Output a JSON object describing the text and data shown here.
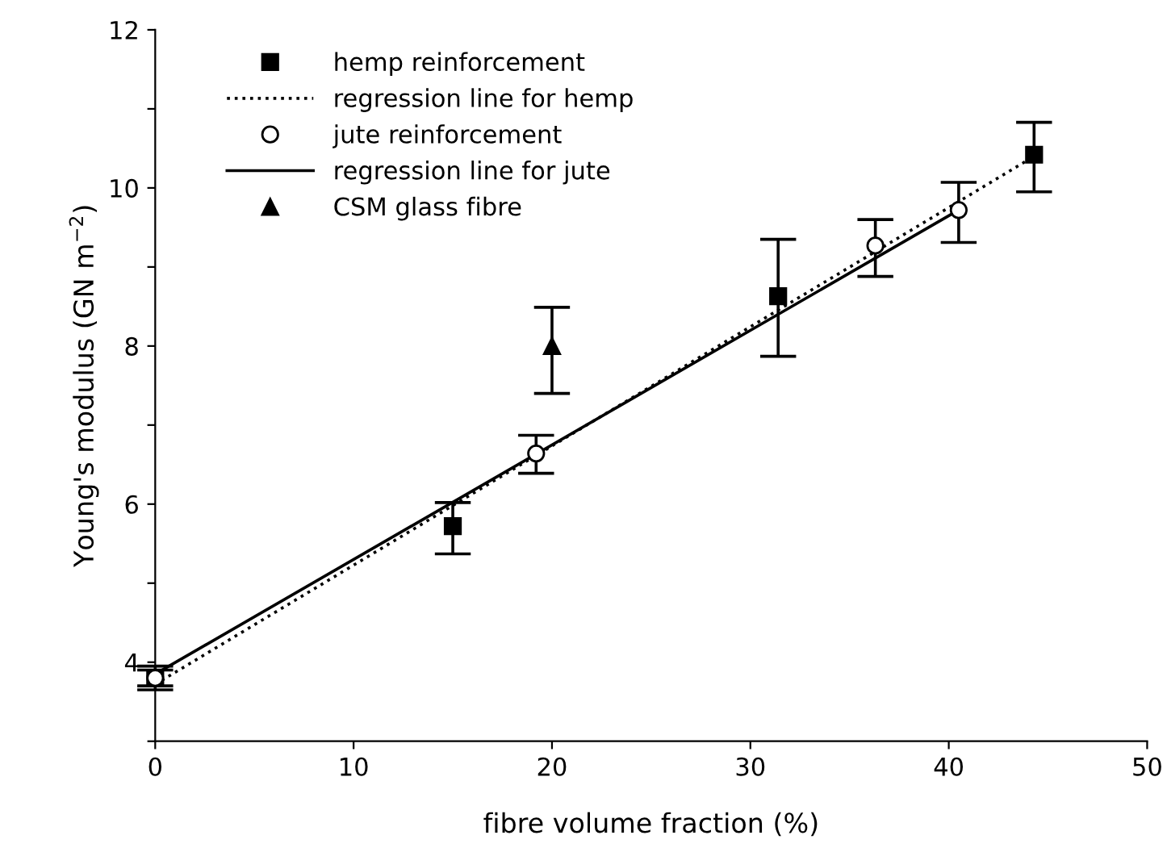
{
  "chart_data": {
    "type": "scatter",
    "xlabel": "fibre volume fraction (%)",
    "ylabel": "Young's modulus (GN m$^{−2}$)",
    "xlim": [
      0,
      50
    ],
    "xticks": [
      0,
      10,
      20,
      30,
      40,
      50
    ],
    "ylim": [
      3,
      12
    ],
    "yticks": [
      {
        "value": 3,
        "label": null
      },
      4,
      {
        "value": 5,
        "label": null
      },
      6,
      {
        "value": 7,
        "label": null
      },
      8,
      {
        "value": 9,
        "label": null
      },
      10,
      {
        "value": 11,
        "label": null
      },
      12
    ],
    "grid": false,
    "legend": "top left",
    "series": [
      {
        "name": "hemp reinforcement",
        "marker": "square",
        "color": "#000000",
        "x": [
          0,
          15,
          31.4,
          44.3
        ],
        "values": [
          3.8,
          5.72,
          8.63,
          10.42
        ],
        "errors": [
          [
            3.65,
            3.95
          ],
          [
            5.37,
            6.02
          ],
          [
            7.87,
            9.35
          ],
          [
            9.95,
            10.83
          ]
        ]
      },
      {
        "name": "regression line for hemp",
        "type": "line",
        "line_style": "dotted",
        "marker": "none",
        "color": "#000000",
        "x": [
          0,
          44.3
        ],
        "values": [
          3.72,
          10.4
        ]
      },
      {
        "name": "jute reinforcement",
        "marker": "circle",
        "color": "#000000",
        "x": [
          0,
          19.2,
          36.3,
          40.5
        ],
        "values": [
          3.8,
          6.64,
          9.27,
          9.72
        ],
        "errors": [
          [
            3.7,
            3.9
          ],
          [
            6.39,
            6.87
          ],
          [
            8.88,
            9.6
          ],
          [
            9.31,
            10.07
          ]
        ]
      },
      {
        "name": "regression line for jute",
        "type": "line",
        "line_style": "solid",
        "marker": "none",
        "color": "#000000",
        "x": [
          0,
          40.5
        ],
        "values": [
          3.85,
          9.72
        ]
      },
      {
        "name": "CSM glass fibre",
        "marker": "triangle",
        "color": "#000000",
        "x": [
          20
        ],
        "values": [
          8.0
        ],
        "errors": [
          [
            7.4,
            8.49
          ]
        ]
      }
    ]
  }
}
